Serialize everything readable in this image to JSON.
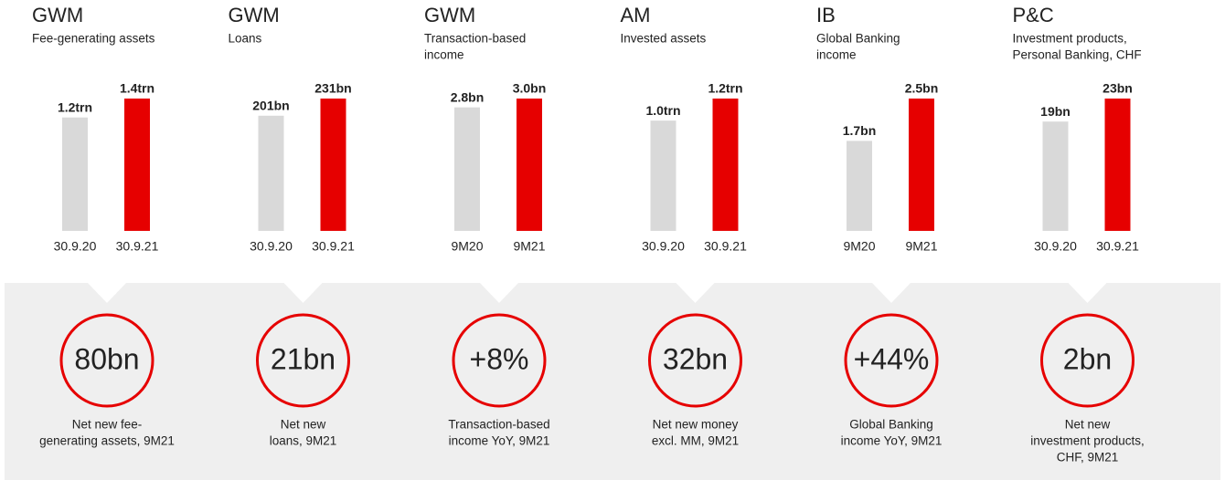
{
  "chart_data": [
    {
      "type": "bar",
      "title": "GWM",
      "subtitle": [
        "Fee-generating assets"
      ],
      "categories": [
        "30.9.20",
        "30.9.21"
      ],
      "values": [
        1.2,
        1.4
      ],
      "value_labels": [
        "1.2trn",
        "1.4trn"
      ],
      "colors": [
        "#d9d9d9",
        "#e60000"
      ],
      "highlight": "80bn",
      "highlight_label": [
        "Net new fee-",
        "generating assets, 9M21"
      ]
    },
    {
      "type": "bar",
      "title": "GWM",
      "subtitle": [
        "Loans"
      ],
      "categories": [
        "30.9.20",
        "30.9.21"
      ],
      "values": [
        201,
        231
      ],
      "value_labels": [
        "201bn",
        "231bn"
      ],
      "colors": [
        "#d9d9d9",
        "#e60000"
      ],
      "highlight": "21bn",
      "highlight_label": [
        "Net new",
        "loans, 9M21"
      ]
    },
    {
      "type": "bar",
      "title": "GWM",
      "subtitle": [
        "Transaction-based",
        "income"
      ],
      "categories": [
        "9M20",
        "9M21"
      ],
      "values": [
        2.8,
        3.0
      ],
      "value_labels": [
        "2.8bn",
        "3.0bn"
      ],
      "colors": [
        "#d9d9d9",
        "#e60000"
      ],
      "highlight": "+8%",
      "highlight_label": [
        "Transaction-based",
        "income YoY, 9M21"
      ]
    },
    {
      "type": "bar",
      "title": "AM",
      "subtitle": [
        "Invested assets"
      ],
      "categories": [
        "30.9.20",
        "30.9.21"
      ],
      "values": [
        1.0,
        1.2
      ],
      "value_labels": [
        "1.0trn",
        "1.2trn"
      ],
      "colors": [
        "#d9d9d9",
        "#e60000"
      ],
      "highlight": "32bn",
      "highlight_label": [
        "Net new money",
        "excl. MM, 9M21"
      ]
    },
    {
      "type": "bar",
      "title": "IB",
      "subtitle": [
        "Global Banking",
        "income"
      ],
      "categories": [
        "9M20",
        "9M21"
      ],
      "values": [
        1.7,
        2.5
      ],
      "value_labels": [
        "1.7bn",
        "2.5bn"
      ],
      "colors": [
        "#d9d9d9",
        "#e60000"
      ],
      "highlight": "+44%",
      "highlight_label": [
        "Global Banking",
        "income YoY, 9M21"
      ]
    },
    {
      "type": "bar",
      "title": "P&C",
      "subtitle": [
        "Investment products,",
        "Personal Banking, CHF"
      ],
      "categories": [
        "30.9.20",
        "30.9.21"
      ],
      "values": [
        19,
        23
      ],
      "value_labels": [
        "19bn",
        "23bn"
      ],
      "colors": [
        "#d9d9d9",
        "#e60000"
      ],
      "highlight": "2bn",
      "highlight_label": [
        "Net new",
        "investment products,",
        "CHF, 9M21"
      ]
    }
  ]
}
